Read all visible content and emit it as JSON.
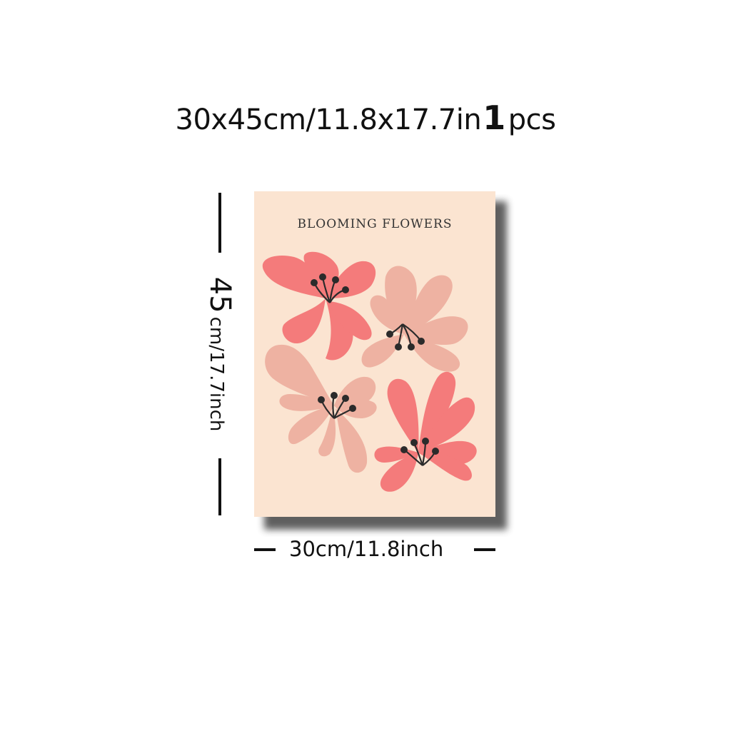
{
  "headline": {
    "size_text": "30x45cm/11.8x17.7in",
    "quantity": "1",
    "unit": "pcs"
  },
  "poster": {
    "title": "BLOOMING FLOWERS",
    "colors": {
      "background": "#fbe4d1",
      "coral": "#f47b7b",
      "blush": "#eeb2a2",
      "stamen": "#2b2b2b"
    }
  },
  "dimensions": {
    "height_value": "45",
    "height_rest": "cm/17.7inch",
    "width_label": "30cm/11.8inch"
  }
}
